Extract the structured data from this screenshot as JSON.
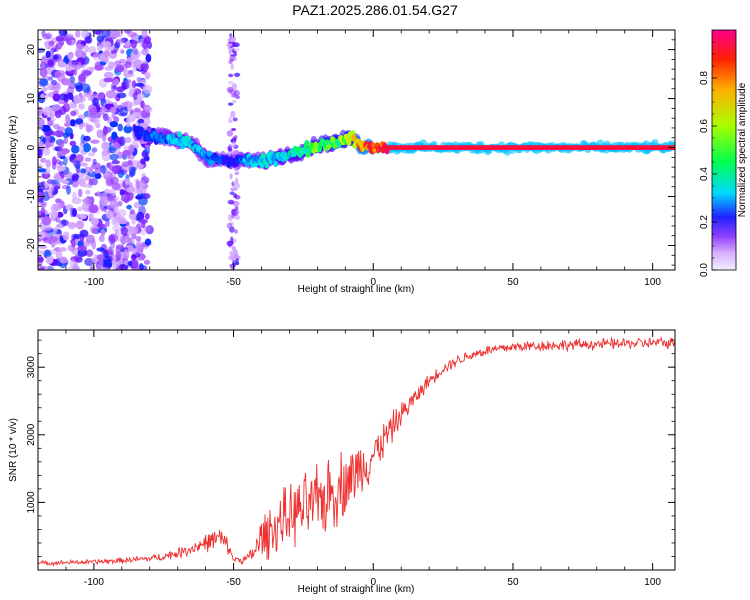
{
  "title": "PAZ1.2025.286.01.54.G27",
  "chart_data": [
    {
      "type": "heatmap",
      "xlabel": "Height of straight line (km)",
      "ylabel": "Frequency (Hz)",
      "xlim": [
        -120,
        108
      ],
      "ylim": [
        -25,
        24
      ],
      "xticks": [
        -100,
        -50,
        0,
        50,
        100
      ],
      "yticks": [
        -20,
        -10,
        0,
        10,
        20
      ],
      "colorbar": {
        "label": "Normalized spectral amplitude",
        "range": [
          0.0,
          1.0
        ],
        "ticks": [
          0.0,
          0.2,
          0.4,
          0.6,
          0.8
        ],
        "colors": [
          "#f4eeff",
          "#b060ff",
          "#6000ff",
          "#0020ff",
          "#00e0ff",
          "#00ff40",
          "#c0ff00",
          "#ffa000",
          "#ff2000",
          "#ff0080"
        ]
      },
      "ridge": {
        "x": [
          -85,
          -80,
          -75,
          -70,
          -65,
          -60,
          -55,
          -50,
          -45,
          -40,
          -35,
          -30,
          -25,
          -20,
          -15,
          -10,
          -8,
          -5,
          0,
          5,
          10,
          20,
          50,
          100,
          108
        ],
        "y": [
          3,
          2.5,
          2,
          1.5,
          1,
          -2,
          -2.5,
          -3,
          -2.5,
          -3,
          -2,
          -1.5,
          -0.5,
          0.5,
          1,
          1.5,
          2,
          0.5,
          0,
          0,
          0,
          0,
          0,
          0,
          0
        ],
        "amplitude": [
          0.3,
          0.35,
          0.4,
          0.45,
          0.45,
          0.4,
          0.35,
          0.3,
          0.45,
          0.45,
          0.5,
          0.5,
          0.55,
          0.6,
          0.6,
          0.65,
          0.7,
          0.85,
          0.9,
          0.95,
          0.95,
          0.95,
          0.95,
          0.95,
          0.95
        ]
      },
      "noise_region": {
        "x_range": [
          -120,
          -80
        ],
        "extra_column_x": -50,
        "amplitude_range": [
          0.05,
          0.3
        ]
      }
    },
    {
      "type": "line",
      "xlabel": "Height of straight line (km)",
      "ylabel": "SNR (10 * v/v)",
      "xlim": [
        -120,
        108
      ],
      "ylim": [
        0,
        3550
      ],
      "xticks": [
        -100,
        -50,
        0,
        50,
        100
      ],
      "yticks": [
        1000,
        2000,
        3000
      ],
      "color": "#ee3030",
      "series": [
        {
          "name": "SNR",
          "x": [
            -120,
            -110,
            -100,
            -90,
            -80,
            -75,
            -70,
            -65,
            -60,
            -55,
            -52,
            -50,
            -47,
            -45,
            -42,
            -40,
            -35,
            -30,
            -25,
            -20,
            -17,
            -15,
            -10,
            -7,
            -5,
            0,
            5,
            10,
            15,
            20,
            25,
            30,
            35,
            40,
            45,
            50,
            60,
            70,
            80,
            90,
            100,
            108
          ],
          "y": [
            100,
            110,
            120,
            140,
            170,
            200,
            250,
            320,
            400,
            480,
            350,
            160,
            150,
            170,
            300,
            480,
            650,
            800,
            900,
            980,
            1100,
            1150,
            1300,
            1400,
            1500,
            1700,
            2000,
            2300,
            2550,
            2800,
            2980,
            3100,
            3180,
            3240,
            3270,
            3300,
            3320,
            3330,
            3340,
            3350,
            3360,
            3360
          ],
          "noise_amplitude": [
            40,
            40,
            45,
            50,
            60,
            70,
            90,
            120,
            160,
            200,
            140,
            60,
            60,
            80,
            250,
            400,
            500,
            550,
            600,
            650,
            700,
            700,
            600,
            550,
            500,
            400,
            300,
            220,
            160,
            120,
            100,
            100,
            100,
            100,
            100,
            100,
            100,
            100,
            100,
            100,
            100,
            100
          ]
        }
      ]
    }
  ]
}
